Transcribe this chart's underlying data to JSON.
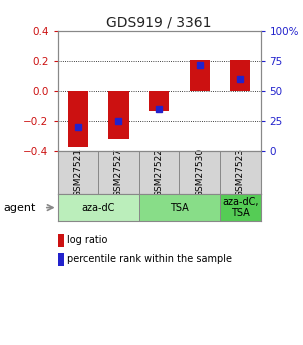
{
  "title": "GDS919 / 3361",
  "samples": [
    "GSM27521",
    "GSM27527",
    "GSM27522",
    "GSM27530",
    "GSM27523"
  ],
  "log_ratios": [
    -0.37,
    -0.32,
    -0.13,
    0.21,
    0.21
  ],
  "percentile_ranks": [
    20,
    25,
    35,
    72,
    60
  ],
  "ylim_left": [
    -0.4,
    0.4
  ],
  "ylim_right": [
    0,
    100
  ],
  "bar_color": "#cc1111",
  "marker_color": "#2222cc",
  "title_color": "#222222",
  "left_tick_color": "#cc1111",
  "right_tick_color": "#2222cc",
  "grid_color": "#000000",
  "sample_cell_color": "#d4d4d4",
  "agent_groups": [
    {
      "label": "aza-dC",
      "start": 0,
      "end": 2,
      "color": "#bbeebb"
    },
    {
      "label": "TSA",
      "start": 2,
      "end": 4,
      "color": "#88dd88"
    },
    {
      "label": "aza-dC,\nTSA",
      "start": 4,
      "end": 5,
      "color": "#55cc55"
    }
  ],
  "agent_label": "agent",
  "legend_log_ratio": "log ratio",
  "legend_percentile": "percentile rank within the sample",
  "bar_width": 0.5,
  "left_yticks": [
    -0.4,
    -0.2,
    0,
    0.2,
    0.4
  ],
  "right_yticks": [
    0,
    25,
    50,
    75,
    100
  ],
  "right_yticklabels": [
    "0",
    "25",
    "50",
    "75",
    "100%"
  ]
}
